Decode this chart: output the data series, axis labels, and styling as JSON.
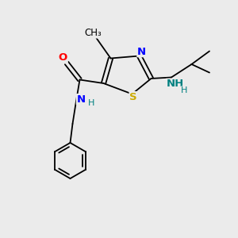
{
  "background_color": "#ebebeb",
  "bond_color": "#000000",
  "atom_colors": {
    "O": "#ff0000",
    "N": "#0000ff",
    "S": "#ccaa00",
    "NH_iso": "#008080",
    "C": "#000000"
  },
  "figsize": [
    3.0,
    3.0
  ],
  "dpi": 100,
  "xlim": [
    0,
    10
  ],
  "ylim": [
    0,
    10
  ]
}
